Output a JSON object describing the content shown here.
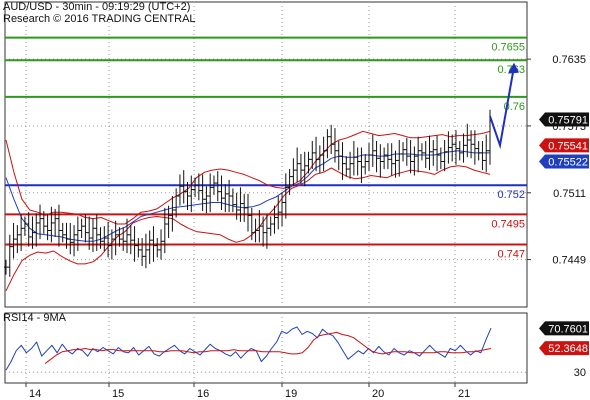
{
  "header": {
    "line1": "AUD/USD - 30min - 09:19:29 (UTC+2)",
    "line2": "Research © 2016 TRADING CENTRAL"
  },
  "colors": {
    "price": "#111111",
    "bands": "#cc1111",
    "ma": "#1f3fbf",
    "resistance": "#2a9a1a",
    "support": "#cc1111",
    "pivot": "#1f2fbf",
    "arrow": "#1f2fbf",
    "grid": "#9a9a9a",
    "current_tag": "#111111",
    "red_tag": "#cc1111",
    "blue_tag": "#1f3fbf"
  },
  "chart_data": [
    {
      "type": "line",
      "title": "AUD/USD - 30min",
      "xlabel": "",
      "ylabel": "",
      "ylim": [
        0.7405,
        0.7688
      ],
      "x_ticks": [
        "14",
        "15",
        "16",
        "19",
        "20",
        "21"
      ],
      "y_ticks": [
        "0.7635",
        "0.7573",
        "0.7511",
        "0.7449"
      ],
      "grid": true,
      "levels": [
        {
          "label": "0.7655",
          "value": 0.7655,
          "role": "resistance"
        },
        {
          "label": "0.763",
          "value": 0.7634,
          "role": "resistance"
        },
        {
          "label": "0.76",
          "value": 0.76,
          "role": "resistance"
        },
        {
          "label": "0.752",
          "value": 0.7518,
          "role": "pivot"
        },
        {
          "label": "0.7495",
          "value": 0.7491,
          "role": "support"
        },
        {
          "label": "0.747",
          "value": 0.7463,
          "role": "support"
        }
      ],
      "value_tags": [
        {
          "label": "0.75791",
          "value": 0.7579,
          "role": "current"
        },
        {
          "label": "0.75541",
          "value": 0.7555,
          "role": "upper"
        },
        {
          "label": "0.75522",
          "value": 0.754,
          "role": "ma"
        }
      ],
      "forecast_path": [
        {
          "x": "21",
          "y": 0.7582
        },
        {
          "x": "21",
          "y": 0.7555
        },
        {
          "x": "21",
          "y": 0.7628
        }
      ],
      "series": [
        {
          "name": "AUD/USD",
          "style": "bars",
          "values": [
            0.7442,
            0.7461,
            0.7468,
            0.7472,
            0.7478,
            0.7482,
            0.747,
            0.7474,
            0.7483,
            0.7487,
            0.748,
            0.7476,
            0.7483,
            0.7487,
            0.7476,
            0.7472,
            0.7468,
            0.7465,
            0.7472,
            0.7476,
            0.748,
            0.7474,
            0.7469,
            0.7478,
            0.7472,
            0.7466,
            0.7469,
            0.7462,
            0.7468,
            0.7472,
            0.7468,
            0.7466,
            0.7472,
            0.7467,
            0.7462,
            0.7458,
            0.7452,
            0.7458,
            0.7467,
            0.7462,
            0.7458,
            0.7466,
            0.7482,
            0.749,
            0.7495,
            0.7508,
            0.7517,
            0.7512,
            0.7508,
            0.7514,
            0.7518,
            0.7513,
            0.7505,
            0.7508,
            0.7516,
            0.752,
            0.7512,
            0.7506,
            0.751,
            0.7508,
            0.75,
            0.7495,
            0.7501,
            0.7497,
            0.749,
            0.7474,
            0.7476,
            0.748,
            0.7474,
            0.7478,
            0.7482,
            0.7488,
            0.7493,
            0.7502,
            0.7516,
            0.7526,
            0.7532,
            0.7538,
            0.7532,
            0.7536,
            0.7542,
            0.7548,
            0.7542,
            0.7546,
            0.755,
            0.7563,
            0.7556,
            0.755,
            0.7545,
            0.7538,
            0.7533,
            0.7538,
            0.7544,
            0.754,
            0.7535,
            0.754,
            0.7546,
            0.755,
            0.7543,
            0.754,
            0.7546,
            0.7542,
            0.7538,
            0.7541,
            0.7547,
            0.7551,
            0.7545,
            0.754,
            0.7545,
            0.755,
            0.7548,
            0.7543,
            0.7549,
            0.7551,
            0.7546,
            0.754,
            0.7549,
            0.7553,
            0.7556,
            0.7552,
            0.7548,
            0.7555,
            0.756,
            0.7556,
            0.7552,
            0.7548,
            0.7541,
            0.755,
            0.7579
          ]
        },
        {
          "name": "Upper band",
          "style": "line",
          "values": [
            0.756,
            0.753,
            0.7505,
            0.7495,
            0.7493,
            0.749,
            0.7493,
            0.7493,
            0.7492,
            0.7491,
            0.7488,
            0.7487,
            0.7488,
            0.7485,
            0.7482,
            0.7482,
            0.7487,
            0.7493,
            0.7494,
            0.7496,
            0.7501,
            0.7506,
            0.751,
            0.7515,
            0.7525,
            0.753,
            0.7532,
            0.7533,
            0.7532,
            0.753,
            0.7528,
            0.7525,
            0.7522,
            0.7518,
            0.7516,
            0.7515,
            0.7518,
            0.7522,
            0.753,
            0.754,
            0.7548,
            0.7556,
            0.756,
            0.7562,
            0.7565,
            0.7568,
            0.7566,
            0.7564,
            0.7565,
            0.7566,
            0.7564,
            0.7562,
            0.7562,
            0.7563,
            0.7564,
            0.7565,
            0.7563,
            0.7564,
            0.7564,
            0.7565,
            0.7566,
            0.7568
          ]
        },
        {
          "name": "Lower band",
          "style": "line",
          "values": [
            0.742,
            0.7435,
            0.7448,
            0.7453,
            0.7456,
            0.7455,
            0.7457,
            0.7452,
            0.7448,
            0.7445,
            0.7445,
            0.7447,
            0.7453,
            0.7462,
            0.747,
            0.7475,
            0.7483,
            0.7486,
            0.7488,
            0.7489,
            0.7488,
            0.7487,
            0.7482,
            0.7478,
            0.7475,
            0.7474,
            0.7473,
            0.7472,
            0.7468,
            0.7465,
            0.7467,
            0.7472,
            0.748,
            0.749,
            0.7498,
            0.7508,
            0.7515,
            0.7518,
            0.7522,
            0.7528,
            0.753,
            0.7534,
            0.753,
            0.7526,
            0.7524,
            0.7525,
            0.7527,
            0.7526,
            0.7525,
            0.7528,
            0.753,
            0.7532,
            0.7531,
            0.753,
            0.7528,
            0.7532,
            0.7535,
            0.7536,
            0.7535,
            0.7532,
            0.753,
            0.7528
          ]
        },
        {
          "name": "Moving average",
          "style": "line",
          "values": [
            0.7525,
            0.7505,
            0.7487,
            0.7478,
            0.7473,
            0.7472,
            0.7471,
            0.747,
            0.7468,
            0.7467,
            0.7466,
            0.7466,
            0.7468,
            0.7472,
            0.7476,
            0.7479,
            0.7484,
            0.7489,
            0.7491,
            0.7493,
            0.7495,
            0.7497,
            0.7498,
            0.7499,
            0.75,
            0.7501,
            0.7502,
            0.7502,
            0.75,
            0.7498,
            0.7497,
            0.7498,
            0.75,
            0.7504,
            0.7507,
            0.7512,
            0.7517,
            0.752,
            0.7526,
            0.7534,
            0.7538,
            0.7543,
            0.7545,
            0.7544,
            0.7544,
            0.7546,
            0.7546,
            0.7545,
            0.7545,
            0.7547,
            0.7547,
            0.7547,
            0.7546,
            0.7546,
            0.7546,
            0.7548,
            0.7549,
            0.755,
            0.7549,
            0.7548,
            0.7548,
            0.7548
          ]
        }
      ]
    },
    {
      "type": "line",
      "title": "RSI14 - 9MA",
      "xlabel": "",
      "ylabel": "",
      "ylim": [
        20,
        85
      ],
      "y_ticks": [
        "30"
      ],
      "value_tags": [
        {
          "label": "70.7601",
          "value": 70.76,
          "role": "rsi"
        },
        {
          "label": "52.3648",
          "value": 52.36,
          "role": "ma"
        }
      ],
      "series": [
        {
          "name": "RSI14",
          "values": [
            32,
            40,
            50,
            55,
            48,
            52,
            58,
            45,
            50,
            55,
            48,
            56,
            50,
            47,
            52,
            50,
            45,
            52,
            49,
            53,
            50,
            47,
            53,
            49,
            48,
            53,
            46,
            50,
            54,
            47,
            45,
            49,
            52,
            55,
            50,
            47,
            52,
            49,
            46,
            51,
            56,
            52,
            50,
            47,
            45,
            49,
            43,
            48,
            52,
            50,
            40,
            45,
            52,
            58,
            68,
            66,
            70,
            72,
            65,
            68,
            66,
            62,
            70,
            66,
            64,
            58,
            50,
            42,
            46,
            50,
            47,
            52,
            48,
            54,
            49,
            46,
            52,
            48,
            46,
            50,
            48,
            45,
            50,
            55,
            50,
            47,
            44,
            52,
            50,
            55,
            50,
            46,
            50,
            48,
            60,
            71
          ]
        },
        {
          "name": "9MA",
          "values": [
            38,
            42,
            46,
            49,
            50,
            51,
            51,
            52,
            51,
            51,
            50,
            51,
            51,
            50,
            50,
            50,
            50,
            50,
            50,
            50,
            49,
            49,
            50,
            50,
            50,
            49,
            48,
            49,
            49,
            50,
            50,
            50,
            50,
            51,
            50,
            50,
            50,
            50,
            49,
            49,
            49,
            49,
            48,
            47,
            47,
            48,
            53,
            60,
            64,
            65,
            66,
            67,
            65,
            64,
            62,
            58,
            54,
            50,
            48,
            47,
            48,
            49,
            49,
            49,
            48,
            48,
            48,
            48,
            48,
            49,
            49,
            48,
            48,
            48,
            49,
            49,
            50,
            51,
            52
          ]
        }
      ]
    }
  ]
}
